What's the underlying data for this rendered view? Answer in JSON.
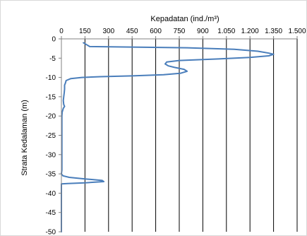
{
  "chart_data": {
    "type": "line",
    "title": "Kepadatan (ind./m³)",
    "xlabel": "",
    "ylabel": "Strata Kedalaman (m)",
    "x_axis_position": "top",
    "xlim": [
      0,
      1500
    ],
    "ylim": [
      -50,
      0
    ],
    "x_ticks": [
      0,
      150,
      300,
      450,
      600,
      750,
      900,
      1050,
      1200,
      1350,
      1500
    ],
    "x_tick_labels": [
      "0",
      "150",
      "300",
      "450",
      "600",
      "750",
      "900",
      "1.050",
      "1.200",
      "1.350",
      "1.500"
    ],
    "y_ticks": [
      0,
      -5,
      -10,
      -15,
      -20,
      -25,
      -30,
      -35,
      -40,
      -45,
      -50
    ],
    "y_tick_labels": [
      "0",
      "-5",
      "-10",
      "-15",
      "-20",
      "-25",
      "-30",
      "-35",
      "-40",
      "-45",
      "-50"
    ],
    "grid": "vertical",
    "series": [
      {
        "color": "#4a7ebb",
        "points": [
          [
            140,
            -1
          ],
          [
            160,
            -1.5
          ],
          [
            180,
            -2
          ],
          [
            400,
            -2.1
          ],
          [
            800,
            -2.3
          ],
          [
            1100,
            -2.7
          ],
          [
            1250,
            -3.2
          ],
          [
            1320,
            -3.7
          ],
          [
            1350,
            -4.0
          ],
          [
            1320,
            -4.4
          ],
          [
            1200,
            -4.8
          ],
          [
            1000,
            -5.2
          ],
          [
            750,
            -5.6
          ],
          [
            670,
            -6
          ],
          [
            660,
            -6.5
          ],
          [
            680,
            -7
          ],
          [
            720,
            -7.4
          ],
          [
            780,
            -7.9
          ],
          [
            800,
            -8.4
          ],
          [
            760,
            -8.9
          ],
          [
            650,
            -9.3
          ],
          [
            450,
            -9.6
          ],
          [
            250,
            -9.8
          ],
          [
            130,
            -10
          ],
          [
            60,
            -10.3
          ],
          [
            30,
            -10.8
          ],
          [
            25,
            -11.5
          ],
          [
            20,
            -12
          ],
          [
            20,
            -13
          ],
          [
            18,
            -14
          ],
          [
            15,
            -15
          ],
          [
            12,
            -16
          ],
          [
            15,
            -17
          ],
          [
            20,
            -17.5
          ],
          [
            12,
            -18
          ],
          [
            5,
            -19
          ],
          [
            3,
            -20
          ],
          [
            3,
            -25
          ],
          [
            3,
            -30
          ],
          [
            3,
            -34
          ],
          [
            0,
            -35
          ],
          [
            10,
            -35.5
          ],
          [
            50,
            -35.9
          ],
          [
            150,
            -36.3
          ],
          [
            260,
            -36.7
          ],
          [
            270,
            -37
          ],
          [
            150,
            -37.3
          ],
          [
            40,
            -37.5
          ],
          [
            0,
            -37.6
          ],
          [
            0,
            -50
          ]
        ]
      }
    ]
  }
}
